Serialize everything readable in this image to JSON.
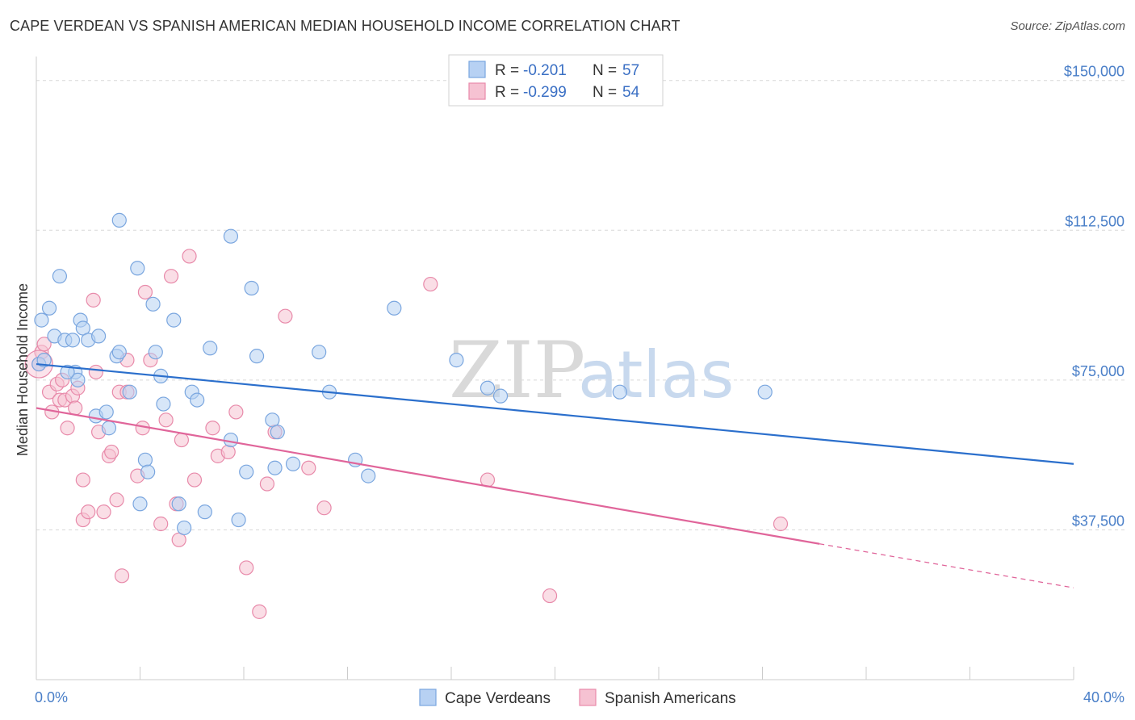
{
  "title": "CAPE VERDEAN VS SPANISH AMERICAN MEDIAN HOUSEHOLD INCOME CORRELATION CHART",
  "source": "Source: ZipAtlas.com",
  "watermark": {
    "zip": "ZIP",
    "atlas": "atlas"
  },
  "colors": {
    "blue_fill": "#b7d1f3",
    "blue_stroke": "#7aa6df",
    "blue_line": "#2b6fcc",
    "pink_fill": "#f6c2d2",
    "pink_stroke": "#e88aaa",
    "pink_line": "#e0659a",
    "grid": "#d8d8d8",
    "axis_text": "#4a7fc8"
  },
  "legend_top": [
    {
      "r_label": "R =",
      "r_value": "-0.201",
      "n_label": "N =",
      "n_value": "57"
    },
    {
      "r_label": "R =",
      "r_value": "-0.299",
      "n_label": "N =",
      "n_value": "54"
    }
  ],
  "chart_data": {
    "type": "scatter",
    "title": "CAPE VERDEAN VS SPANISH AMERICAN MEDIAN HOUSEHOLD INCOME CORRELATION CHART",
    "xlabel": "",
    "ylabel": "Median Household Income",
    "xlim": [
      0,
      40
    ],
    "ylim": [
      0,
      156000
    ],
    "x_tick_labels": [
      "0.0%",
      "40.0%"
    ],
    "y_ticks": [
      37500,
      75000,
      112500,
      150000
    ],
    "y_tick_labels": [
      "$37,500",
      "$75,000",
      "$112,500",
      "$150,000"
    ],
    "grid": true,
    "legend_placement": "bottom",
    "series": [
      {
        "name": "Cape Verdeans",
        "color": "#b7d1f3",
        "trend": {
          "x": [
            0,
            40
          ],
          "y": [
            79000,
            54000
          ]
        },
        "points": [
          [
            0.1,
            79000
          ],
          [
            0.2,
            90000
          ],
          [
            0.5,
            93000
          ],
          [
            0.7,
            86000
          ],
          [
            0.9,
            101000
          ],
          [
            1.1,
            85000
          ],
          [
            1.4,
            85000
          ],
          [
            1.5,
            77000
          ],
          [
            1.6,
            75000
          ],
          [
            1.7,
            90000
          ],
          [
            1.8,
            88000
          ],
          [
            2.0,
            85000
          ],
          [
            2.4,
            86000
          ],
          [
            2.3,
            66000
          ],
          [
            2.7,
            67000
          ],
          [
            2.8,
            63000
          ],
          [
            3.1,
            81000
          ],
          [
            3.2,
            82000
          ],
          [
            3.2,
            115000
          ],
          [
            3.6,
            72000
          ],
          [
            3.9,
            103000
          ],
          [
            4.0,
            44000
          ],
          [
            4.2,
            55000
          ],
          [
            4.3,
            52000
          ],
          [
            4.5,
            94000
          ],
          [
            4.6,
            82000
          ],
          [
            4.8,
            76000
          ],
          [
            4.9,
            69000
          ],
          [
            5.3,
            90000
          ],
          [
            5.5,
            44000
          ],
          [
            5.7,
            38000
          ],
          [
            6.0,
            72000
          ],
          [
            6.2,
            70000
          ],
          [
            6.7,
            83000
          ],
          [
            7.5,
            111000
          ],
          [
            7.5,
            60000
          ],
          [
            7.8,
            40000
          ],
          [
            8.1,
            52000
          ],
          [
            8.3,
            98000
          ],
          [
            8.5,
            81000
          ],
          [
            9.1,
            65000
          ],
          [
            9.2,
            53000
          ],
          [
            9.3,
            62000
          ],
          [
            9.9,
            54000
          ],
          [
            10.9,
            82000
          ],
          [
            11.3,
            72000
          ],
          [
            12.3,
            55000
          ],
          [
            12.8,
            51000
          ],
          [
            13.8,
            93000
          ],
          [
            16.2,
            80000
          ],
          [
            17.4,
            73000
          ],
          [
            17.9,
            71000
          ],
          [
            22.5,
            72000
          ],
          [
            28.1,
            72000
          ],
          [
            0.3,
            80000
          ],
          [
            1.2,
            77000
          ],
          [
            6.5,
            42000
          ]
        ]
      },
      {
        "name": "Spanish Americans",
        "color": "#f6c2d2",
        "trend": {
          "x": [
            0,
            30.2
          ],
          "y": [
            68000,
            34000
          ]
        },
        "trend_dashed": {
          "x": [
            30.2,
            40
          ],
          "y": [
            34000,
            23000
          ]
        },
        "points": [
          [
            0.1,
            79000
          ],
          [
            0.2,
            82000
          ],
          [
            0.3,
            84000
          ],
          [
            0.5,
            72000
          ],
          [
            0.6,
            67000
          ],
          [
            0.8,
            74000
          ],
          [
            0.9,
            70000
          ],
          [
            1.0,
            75000
          ],
          [
            1.1,
            70000
          ],
          [
            1.2,
            63000
          ],
          [
            1.4,
            71000
          ],
          [
            1.5,
            68000
          ],
          [
            1.6,
            73000
          ],
          [
            1.8,
            40000
          ],
          [
            1.8,
            50000
          ],
          [
            2.0,
            42000
          ],
          [
            2.2,
            95000
          ],
          [
            2.3,
            77000
          ],
          [
            2.4,
            62000
          ],
          [
            2.6,
            42000
          ],
          [
            2.8,
            56000
          ],
          [
            2.9,
            57000
          ],
          [
            3.1,
            45000
          ],
          [
            3.2,
            72000
          ],
          [
            3.3,
            26000
          ],
          [
            3.5,
            80000
          ],
          [
            3.5,
            72000
          ],
          [
            3.9,
            51000
          ],
          [
            4.1,
            63000
          ],
          [
            4.2,
            97000
          ],
          [
            4.4,
            80000
          ],
          [
            4.8,
            39000
          ],
          [
            5.0,
            65000
          ],
          [
            5.2,
            101000
          ],
          [
            5.4,
            44000
          ],
          [
            5.5,
            35000
          ],
          [
            5.6,
            60000
          ],
          [
            5.9,
            106000
          ],
          [
            6.1,
            50000
          ],
          [
            6.8,
            63000
          ],
          [
            7.0,
            56000
          ],
          [
            7.4,
            57000
          ],
          [
            7.7,
            67000
          ],
          [
            8.1,
            28000
          ],
          [
            8.6,
            17000
          ],
          [
            8.9,
            49000
          ],
          [
            9.2,
            62000
          ],
          [
            9.6,
            91000
          ],
          [
            10.5,
            53000
          ],
          [
            11.1,
            43000
          ],
          [
            15.2,
            99000
          ],
          [
            17.4,
            50000
          ],
          [
            19.8,
            21000
          ],
          [
            28.7,
            39000
          ]
        ]
      }
    ]
  },
  "bottom_legend": [
    {
      "label": "Cape Verdeans"
    },
    {
      "label": "Spanish Americans"
    }
  ]
}
